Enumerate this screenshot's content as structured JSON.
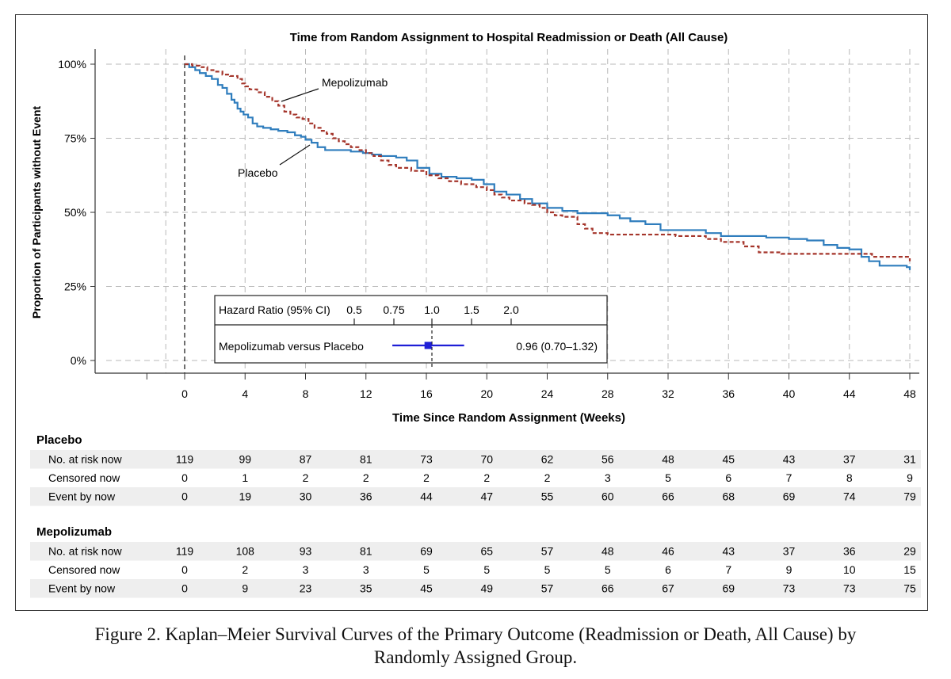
{
  "chart_data": {
    "type": "line",
    "subtype": "kaplan-meier",
    "title": "Time from Random Assignment to Hospital Readmission or Death (All Cause)",
    "xlabel": "Time Since Random Assignment (Weeks)",
    "ylabel": "Proportion of Participants without Event",
    "xlim": [
      -2.5,
      48.5
    ],
    "ylim": [
      0,
      100
    ],
    "x_ticks": [
      0,
      4,
      8,
      12,
      16,
      20,
      24,
      28,
      32,
      36,
      40,
      44,
      48
    ],
    "x_tick_labels": [
      "0",
      "4",
      "8",
      "12",
      "16",
      "20",
      "24",
      "28",
      "32",
      "36",
      "40",
      "44",
      "48"
    ],
    "y_ticks": [
      0,
      25,
      50,
      75,
      100
    ],
    "y_tick_labels": [
      "0%",
      "25%",
      "50%",
      "75%",
      "100%"
    ],
    "grid": true,
    "colors": {
      "placebo": "#2f7dbd",
      "mepolizumab": "#a5362c",
      "forest_marker": "#1f1fd6"
    },
    "series": [
      {
        "name": "Placebo",
        "style": "solid",
        "x": [
          0,
          0.3,
          0.7,
          1.0,
          1.4,
          1.8,
          2.2,
          2.5,
          2.8,
          3.1,
          3.3,
          3.5,
          3.7,
          3.9,
          4.2,
          4.5,
          4.8,
          5.2,
          5.7,
          6.2,
          6.8,
          7.3,
          7.7,
          8.0,
          8.4,
          8.8,
          9.3,
          10.0,
          11.0,
          11.8,
          12.4,
          13.0,
          14.0,
          14.7,
          15.4,
          16.2,
          17.0,
          18.0,
          19.0,
          19.8,
          20.5,
          21.3,
          22.2,
          23.0,
          24.0,
          25.0,
          26.0,
          27.0,
          28.0,
          28.8,
          29.5,
          30.5,
          31.5,
          32.5,
          33.5,
          34.5,
          35.5,
          37.0,
          38.5,
          40.0,
          41.2,
          42.3,
          43.2,
          44.0,
          44.8,
          45.3,
          46.0,
          47.0,
          47.8,
          48.0
        ],
        "y": [
          100,
          99,
          98,
          97,
          96,
          95,
          93,
          92,
          90,
          88,
          87,
          85,
          84,
          83,
          82,
          80,
          79,
          78.5,
          78,
          77.5,
          77,
          76,
          75.5,
          74.5,
          73.5,
          72,
          71,
          71,
          70.5,
          70,
          69.5,
          69,
          68.5,
          67.5,
          65,
          63,
          62,
          61.5,
          61,
          59.5,
          57,
          56,
          54.5,
          53,
          51.5,
          50.5,
          49.7,
          49.7,
          49,
          48,
          47,
          46,
          44,
          44,
          44,
          43,
          42,
          42,
          41.5,
          41,
          40.5,
          39,
          38,
          37.5,
          35,
          33.5,
          32,
          32,
          31.5,
          30.5
        ]
      },
      {
        "name": "Mepolizumab",
        "style": "dashed",
        "x": [
          0,
          0.5,
          1.0,
          1.5,
          2.0,
          2.5,
          3.0,
          3.5,
          3.8,
          4.0,
          4.3,
          4.8,
          5.3,
          5.8,
          6.2,
          6.6,
          7.0,
          7.4,
          7.8,
          8.2,
          8.6,
          9.0,
          9.4,
          9.8,
          10.2,
          10.6,
          11.0,
          11.5,
          12.0,
          12.5,
          13.0,
          13.5,
          14.0,
          15.0,
          16.0,
          16.8,
          17.5,
          18.3,
          19.3,
          20.0,
          20.5,
          21.0,
          21.5,
          22.5,
          23.0,
          23.5,
          24.0,
          24.5,
          25.0,
          26.0,
          26.5,
          27.0,
          28.0,
          29.0,
          31.0,
          32.5,
          34.5,
          35.5,
          36.5,
          37.0,
          38.0,
          39.5,
          41.0,
          42.5,
          43.5,
          45.5,
          46.5,
          47.5,
          48.0
        ],
        "y": [
          100,
          99.5,
          99,
          98,
          97.5,
          96.5,
          96,
          95,
          93.5,
          92.5,
          91.5,
          90.5,
          89,
          87.5,
          86,
          84,
          83,
          82,
          81.5,
          80,
          78.5,
          77.5,
          76.5,
          75,
          74,
          73,
          72,
          71,
          70,
          69,
          67.5,
          66,
          65,
          64,
          62.5,
          61.5,
          60.5,
          59.5,
          58.5,
          57.5,
          56,
          55,
          54,
          53,
          52.5,
          51.5,
          50,
          49,
          48.5,
          46,
          44.5,
          43,
          42.5,
          42.5,
          42.5,
          42,
          41,
          40,
          40,
          38.5,
          36.5,
          36,
          36,
          36,
          36,
          35,
          35,
          35,
          33.5
        ]
      }
    ],
    "annotations": {
      "mepolizumab_label": "Mepolizumab",
      "placebo_label": "Placebo"
    },
    "forest_plot": {
      "header": "Hazard Ratio (95% CI)",
      "scale_ticks": [
        0.5,
        0.75,
        1.0,
        1.5,
        2.0
      ],
      "scale_tick_labels": [
        "0.5",
        "0.75",
        "1.0",
        "1.5",
        "2.0"
      ],
      "row_label": "Mepolizumab versus Placebo",
      "hr": 0.96,
      "ci": [
        0.7,
        1.32
      ],
      "value_text": "0.96 (0.70–1.32)"
    },
    "risk_table": {
      "time_points": [
        0,
        4,
        8,
        12,
        16,
        20,
        24,
        28,
        32,
        36,
        40,
        44,
        48
      ],
      "groups": [
        {
          "name": "Placebo",
          "rows": [
            {
              "label": "No. at risk now",
              "values": [
                119,
                99,
                87,
                81,
                73,
                70,
                62,
                56,
                48,
                45,
                43,
                37,
                31
              ]
            },
            {
              "label": "Censored now",
              "values": [
                0,
                1,
                2,
                2,
                2,
                2,
                2,
                3,
                5,
                6,
                7,
                8,
                9
              ]
            },
            {
              "label": "Event by now",
              "values": [
                0,
                19,
                30,
                36,
                44,
                47,
                55,
                60,
                66,
                68,
                69,
                74,
                79
              ]
            }
          ]
        },
        {
          "name": "Mepolizumab",
          "rows": [
            {
              "label": "No. at risk now",
              "values": [
                119,
                108,
                93,
                81,
                69,
                65,
                57,
                48,
                46,
                43,
                37,
                36,
                29
              ]
            },
            {
              "label": "Censored now",
              "values": [
                0,
                2,
                3,
                3,
                5,
                5,
                5,
                5,
                6,
                7,
                9,
                10,
                15
              ]
            },
            {
              "label": "Event by now",
              "values": [
                0,
                9,
                23,
                35,
                45,
                49,
                57,
                66,
                67,
                69,
                73,
                73,
                75
              ]
            }
          ]
        }
      ]
    }
  },
  "caption": {
    "line1": "Figure 2.  Kaplan–Meier Survival Curves of the Primary Outcome (Readmission or Death, All Cause) by",
    "line2": "Randomly Assigned Group."
  }
}
